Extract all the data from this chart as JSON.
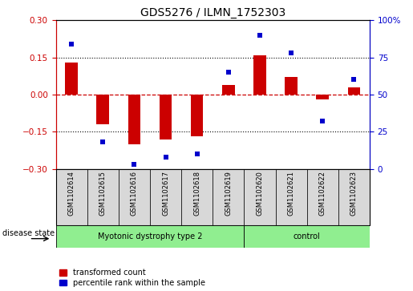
{
  "title": "GDS5276 / ILMN_1752303",
  "samples": [
    "GSM1102614",
    "GSM1102615",
    "GSM1102616",
    "GSM1102617",
    "GSM1102618",
    "GSM1102619",
    "GSM1102620",
    "GSM1102621",
    "GSM1102622",
    "GSM1102623"
  ],
  "red_values": [
    0.13,
    -0.12,
    -0.2,
    -0.18,
    -0.17,
    0.04,
    0.16,
    0.07,
    -0.02,
    0.03
  ],
  "blue_values": [
    84,
    18,
    3,
    8,
    10,
    65,
    90,
    78,
    32,
    60
  ],
  "disease_groups": [
    {
      "label": "Myotonic dystrophy type 2",
      "start": 0,
      "end": 6
    },
    {
      "label": "control",
      "start": 6,
      "end": 10
    }
  ],
  "ylim_left": [
    -0.3,
    0.3
  ],
  "ylim_right": [
    0,
    100
  ],
  "yticks_left": [
    -0.3,
    -0.15,
    0.0,
    0.15,
    0.3
  ],
  "yticks_right": [
    0,
    25,
    50,
    75,
    100
  ],
  "ytick_labels_right": [
    "0",
    "25",
    "50",
    "75",
    "100%"
  ],
  "left_axis_color": "#cc0000",
  "right_axis_color": "#0000cc",
  "bar_color": "#cc0000",
  "dot_color": "#0000cc",
  "legend_red_label": "transformed count",
  "legend_blue_label": "percentile rank within the sample",
  "disease_state_label": "disease state",
  "zero_line_color": "#cc0000",
  "grid_color": "black",
  "sample_box_color": "#d8d8d8",
  "disease_box_color": "#90EE90",
  "bg_color": "white",
  "bar_width": 0.4
}
